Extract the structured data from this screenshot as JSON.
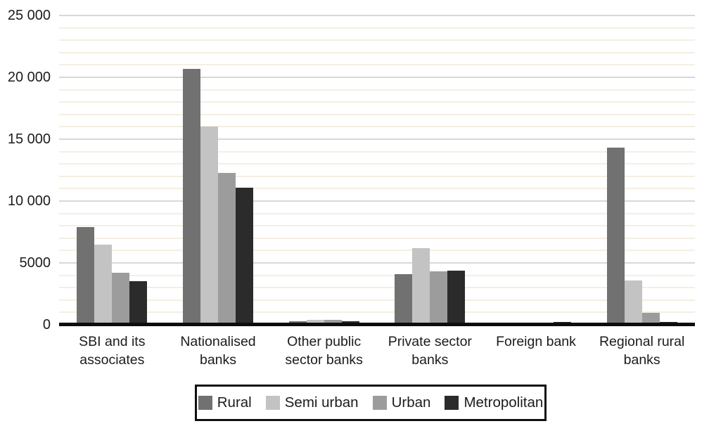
{
  "chart_data": {
    "type": "bar",
    "title": "",
    "categories": [
      "SBI and its associates",
      "Nationalised banks",
      "Other public sector banks",
      "Private sector banks",
      "Foreign bank",
      "Regional rural banks"
    ],
    "series": [
      {
        "name": "Rural",
        "color": "#717171",
        "values": [
          7900,
          20700,
          300,
          4100,
          10,
          14300
        ]
      },
      {
        "name": "Semi urban",
        "color": "#c3c3c3",
        "values": [
          6500,
          16000,
          420,
          6200,
          10,
          3600
        ]
      },
      {
        "name": "Urban",
        "color": "#9c9c9c",
        "values": [
          4200,
          12300,
          420,
          4300,
          60,
          950
        ]
      },
      {
        "name": "Metropolitan",
        "color": "#2b2b2b",
        "values": [
          3500,
          11100,
          300,
          4400,
          230,
          200
        ]
      }
    ],
    "ylim": [
      0,
      25000
    ],
    "ymajor": 5000,
    "yminor": 1000,
    "ytick_labels": [
      "0",
      "5000",
      "10 000",
      "15 000",
      "20 000",
      "25 000"
    ],
    "grid": "horizontal, major and minor lines",
    "legend_position": "bottom"
  },
  "colors": {
    "background": "#ffffff",
    "major_grid": "#d8d8d8",
    "minor_grid": "#f5efe2",
    "axis_line": "#0d0d0d",
    "text": "#1c1c1c",
    "legend_border": "#111111"
  }
}
